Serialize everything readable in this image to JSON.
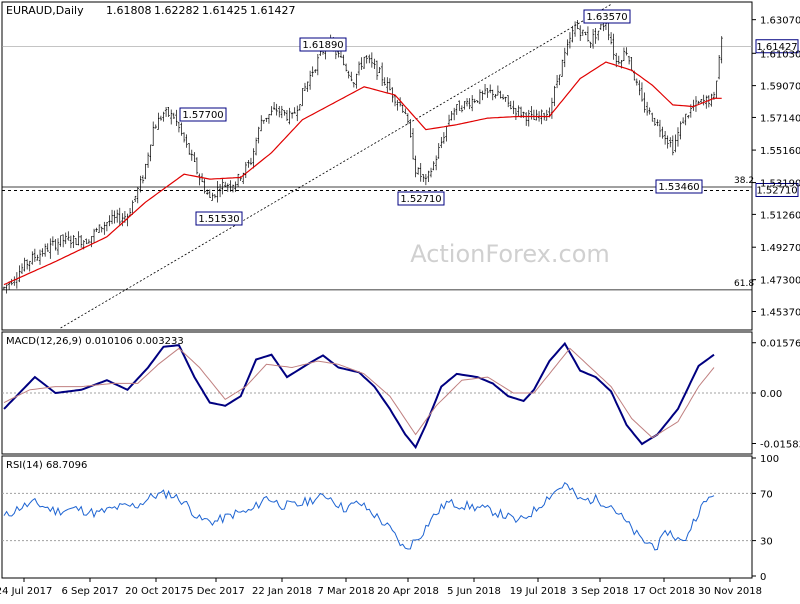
{
  "header": {
    "symbol": "EURAUD,Daily",
    "open": "1.61808",
    "high": "1.62282",
    "low": "1.61425",
    "close": "1.61427"
  },
  "watermark": "ActionForex.com",
  "colors": {
    "candle": "#000000",
    "ma": "#e00000",
    "trendline": "#000000",
    "macd_main": "#000080",
    "macd_signal": "#c08080",
    "rsi": "#1e64d2",
    "grid": "#c0c0c0",
    "label_border": "#000080"
  },
  "chart_data": [
    {
      "type": "candlestick",
      "panel": "price",
      "title": "EURAUD,Daily",
      "ylim": [
        1.4437,
        1.6402
      ],
      "y_ticks": [
        "1.63070",
        "1.61030",
        "1.59070",
        "1.57140",
        "1.55160",
        "1.53190",
        "1.51260",
        "1.49270",
        "1.47300",
        "1.45370"
      ],
      "x_ticks": [
        "24 Jul 2017",
        "6 Sep 2017",
        "20 Oct 2017",
        "5 Dec 2017",
        "22 Jan 2018",
        "7 Mar 2018",
        "20 Apr 2018",
        "5 Jun 2018",
        "19 Jul 2018",
        "3 Sep 2018",
        "17 Oct 2018",
        "30 Nov 2018"
      ],
      "series_points": [
        [
          0,
          1.468
        ],
        [
          10,
          1.485
        ],
        [
          22,
          1.497
        ],
        [
          32,
          1.497
        ],
        [
          40,
          1.508
        ],
        [
          48,
          1.512
        ],
        [
          54,
          1.535
        ],
        [
          58,
          1.565
        ],
        [
          62,
          1.574
        ],
        [
          66,
          1.572
        ],
        [
          72,
          1.55
        ],
        [
          76,
          1.535
        ],
        [
          80,
          1.522
        ],
        [
          84,
          1.53
        ],
        [
          90,
          1.532
        ],
        [
          96,
          1.545
        ],
        [
          100,
          1.57
        ],
        [
          106,
          1.576
        ],
        [
          112,
          1.571
        ],
        [
          116,
          1.586
        ],
        [
          120,
          1.6
        ],
        [
          126,
          1.618
        ],
        [
          132,
          1.604
        ],
        [
          136,
          1.594
        ],
        [
          140,
          1.608
        ],
        [
          146,
          1.598
        ],
        [
          150,
          1.588
        ],
        [
          156,
          1.575
        ],
        [
          160,
          1.54
        ],
        [
          164,
          1.532
        ],
        [
          168,
          1.547
        ],
        [
          174,
          1.575
        ],
        [
          182,
          1.582
        ],
        [
          190,
          1.587
        ],
        [
          198,
          1.577
        ],
        [
          206,
          1.57
        ],
        [
          212,
          1.575
        ],
        [
          216,
          1.6
        ],
        [
          222,
          1.627
        ],
        [
          228,
          1.618
        ],
        [
          234,
          1.63
        ],
        [
          238,
          1.605
        ],
        [
          242,
          1.612
        ],
        [
          248,
          1.58
        ],
        [
          256,
          1.563
        ],
        [
          260,
          1.553
        ],
        [
          264,
          1.57
        ],
        [
          268,
          1.578
        ],
        [
          272,
          1.581
        ],
        [
          276,
          1.583
        ],
        [
          279,
          1.62
        ]
      ],
      "moving_average": [
        [
          0,
          1.47
        ],
        [
          20,
          1.484
        ],
        [
          40,
          1.499
        ],
        [
          55,
          1.52
        ],
        [
          70,
          1.537
        ],
        [
          80,
          1.534
        ],
        [
          92,
          1.535
        ],
        [
          104,
          1.55
        ],
        [
          116,
          1.57
        ],
        [
          128,
          1.58
        ],
        [
          140,
          1.59
        ],
        [
          152,
          1.585
        ],
        [
          164,
          1.564
        ],
        [
          176,
          1.567
        ],
        [
          188,
          1.571
        ],
        [
          200,
          1.572
        ],
        [
          212,
          1.572
        ],
        [
          224,
          1.595
        ],
        [
          234,
          1.605
        ],
        [
          244,
          1.6
        ],
        [
          252,
          1.591
        ],
        [
          260,
          1.579
        ],
        [
          268,
          1.578
        ],
        [
          276,
          1.583
        ]
      ],
      "annotations": [
        {
          "label": "1.57700",
          "value": 1.577
        },
        {
          "label": "1.51530",
          "value": 1.5153
        },
        {
          "label": "1.61890",
          "value": 1.6189
        },
        {
          "label": "1.52710",
          "value": 1.5271
        },
        {
          "label": "1.63570",
          "value": 1.6357
        },
        {
          "label": "1.53460",
          "value": 1.5346
        }
      ],
      "horizontal_levels": [
        {
          "label": "38.2",
          "value": 1.5292,
          "style": "solid"
        },
        {
          "label": "61.8",
          "value": 1.4668,
          "style": "solid"
        },
        {
          "label": "",
          "value": 1.5271,
          "style": "dashed"
        },
        {
          "label": "",
          "value": 1.6143,
          "style": "thin"
        }
      ],
      "current_price_label": "1.61427",
      "trendline": [
        [
          22,
          1.4437
        ],
        [
          236,
          1.64
        ]
      ]
    },
    {
      "type": "line",
      "panel": "macd",
      "title": "MACD(12,26,9) 0.010106 0.003233",
      "ylim": [
        -0.0185,
        0.0185
      ],
      "y_ticks": [
        "0.015762",
        "0.00",
        "-0.015834"
      ],
      "zero_line": 0.0,
      "series": [
        {
          "name": "MACD",
          "values": [
            [
              0,
              -0.005
            ],
            [
              6,
              0.0
            ],
            [
              12,
              0.005
            ],
            [
              20,
              0.0
            ],
            [
              30,
              0.001
            ],
            [
              40,
              0.004
            ],
            [
              48,
              0.001
            ],
            [
              56,
              0.008
            ],
            [
              62,
              0.0145
            ],
            [
              68,
              0.015
            ],
            [
              74,
              0.005
            ],
            [
              80,
              -0.003
            ],
            [
              86,
              -0.004
            ],
            [
              92,
              -0.001
            ],
            [
              98,
              0.0105
            ],
            [
              104,
              0.012
            ],
            [
              110,
              0.005
            ],
            [
              118,
              0.009
            ],
            [
              124,
              0.0118
            ],
            [
              130,
              0.008
            ],
            [
              138,
              0.0065
            ],
            [
              144,
              0.002
            ],
            [
              150,
              -0.005
            ],
            [
              156,
              -0.013
            ],
            [
              160,
              -0.017
            ],
            [
              164,
              -0.01
            ],
            [
              170,
              0.002
            ],
            [
              176,
              0.006
            ],
            [
              184,
              0.005
            ],
            [
              190,
              0.003
            ],
            [
              196,
              -0.001
            ],
            [
              202,
              -0.0025
            ],
            [
              206,
              0.001
            ],
            [
              212,
              0.01
            ],
            [
              218,
              0.0155
            ],
            [
              224,
              0.007
            ],
            [
              230,
              0.005
            ],
            [
              236,
              0.0005
            ],
            [
              242,
              -0.01
            ],
            [
              248,
              -0.016
            ],
            [
              254,
              -0.013
            ],
            [
              262,
              -0.005
            ],
            [
              270,
              0.0085
            ],
            [
              276,
              0.012
            ]
          ]
        },
        {
          "name": "Signal",
          "values": [
            [
              0,
              -0.003
            ],
            [
              10,
              0.001
            ],
            [
              20,
              0.002
            ],
            [
              30,
              0.002
            ],
            [
              42,
              0.003
            ],
            [
              52,
              0.003
            ],
            [
              60,
              0.009
            ],
            [
              68,
              0.014
            ],
            [
              76,
              0.008
            ],
            [
              86,
              -0.002
            ],
            [
              94,
              0.002
            ],
            [
              102,
              0.009
            ],
            [
              112,
              0.008
            ],
            [
              122,
              0.01
            ],
            [
              130,
              0.009
            ],
            [
              140,
              0.006
            ],
            [
              150,
              -0.001
            ],
            [
              160,
              -0.013
            ],
            [
              168,
              -0.004
            ],
            [
              178,
              0.004
            ],
            [
              188,
              0.005
            ],
            [
              198,
              0.0
            ],
            [
              206,
              0.0
            ],
            [
              214,
              0.008
            ],
            [
              220,
              0.014
            ],
            [
              228,
              0.008
            ],
            [
              236,
              0.002
            ],
            [
              244,
              -0.008
            ],
            [
              252,
              -0.014
            ],
            [
              262,
              -0.009
            ],
            [
              270,
              0.002
            ],
            [
              276,
              0.008
            ]
          ]
        }
      ]
    },
    {
      "type": "line",
      "panel": "rsi",
      "title": "RSI(14) 68.7096",
      "ylim": [
        0,
        100
      ],
      "y_ticks": [
        "100",
        "70",
        "30",
        "0"
      ],
      "levels": [
        70,
        30
      ],
      "series": [
        {
          "name": "RSI",
          "values": [
            [
              0,
              50
            ],
            [
              6,
              58
            ],
            [
              12,
              62
            ],
            [
              20,
              55
            ],
            [
              28,
              57
            ],
            [
              36,
              53
            ],
            [
              44,
              58
            ],
            [
              52,
              60
            ],
            [
              58,
              68
            ],
            [
              64,
              70
            ],
            [
              70,
              63
            ],
            [
              76,
              48
            ],
            [
              82,
              46
            ],
            [
              90,
              53
            ],
            [
              96,
              55
            ],
            [
              102,
              67
            ],
            [
              108,
              60
            ],
            [
              114,
              60
            ],
            [
              120,
              65
            ],
            [
              126,
              68
            ],
            [
              132,
              57
            ],
            [
              138,
              62
            ],
            [
              144,
              52
            ],
            [
              150,
              40
            ],
            [
              156,
              22
            ],
            [
              162,
              35
            ],
            [
              166,
              48
            ],
            [
              172,
              62
            ],
            [
              178,
              60
            ],
            [
              184,
              58
            ],
            [
              190,
              55
            ],
            [
              196,
              50
            ],
            [
              200,
              46
            ],
            [
              206,
              55
            ],
            [
              212,
              68
            ],
            [
              218,
              78
            ],
            [
              224,
              64
            ],
            [
              230,
              65
            ],
            [
              236,
              60
            ],
            [
              242,
              45
            ],
            [
              248,
              30
            ],
            [
              254,
              25
            ],
            [
              258,
              38
            ],
            [
              264,
              28
            ],
            [
              270,
              55
            ],
            [
              276,
              71
            ]
          ]
        }
      ]
    }
  ]
}
